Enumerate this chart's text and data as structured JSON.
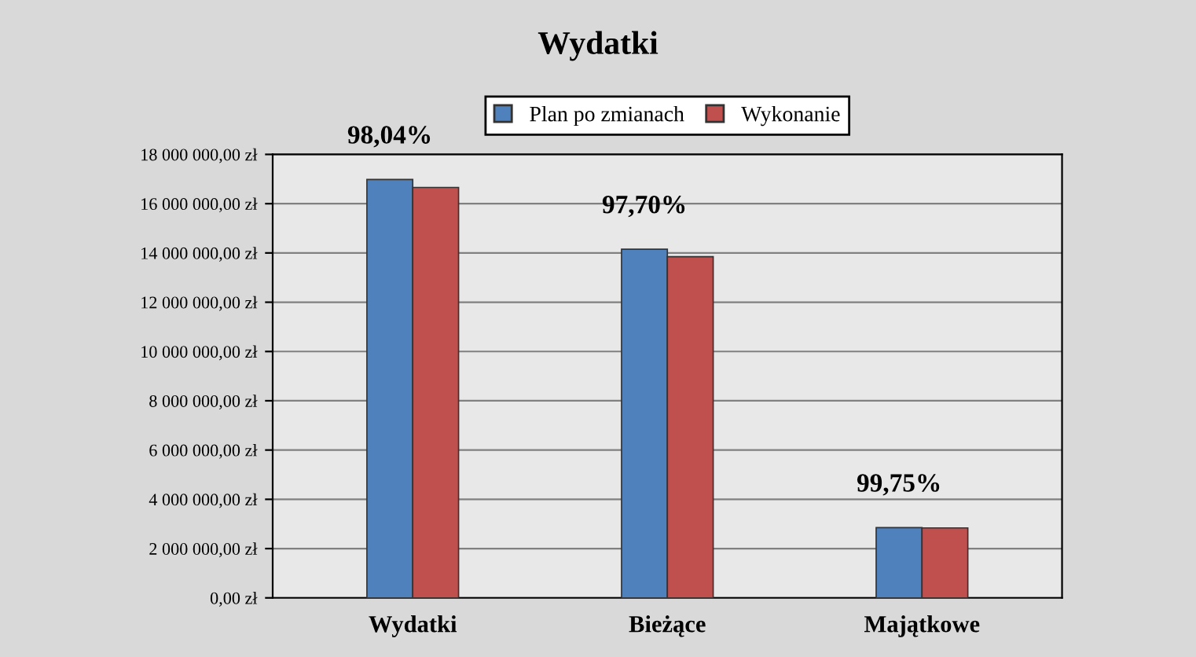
{
  "chart_data": {
    "type": "bar",
    "title": "Wydatki",
    "categories": [
      "Wydatki",
      "Bieżące",
      "Majątkowe"
    ],
    "series": [
      {
        "name": "Plan po zmianach",
        "color": "#4f81bd",
        "values": [
          16980000,
          14150000,
          2850000
        ]
      },
      {
        "name": "Wykonanie",
        "color": "#c0504d",
        "values": [
          16660000,
          13850000,
          2840000
        ]
      }
    ],
    "ylim": [
      0,
      18000000
    ],
    "yticks": [
      {
        "value": 0,
        "label": "0,00 zł"
      },
      {
        "value": 2000000,
        "label": "2 000 000,00 zł"
      },
      {
        "value": 4000000,
        "label": "4 000 000,00 zł"
      },
      {
        "value": 6000000,
        "label": "6 000 000,00 zł"
      },
      {
        "value": 8000000,
        "label": "8 000 000,00 zł"
      },
      {
        "value": 10000000,
        "label": "10 000 000,00 zł"
      },
      {
        "value": 12000000,
        "label": "12 000 000,00 zł"
      },
      {
        "value": 14000000,
        "label": "14 000 000,00 zł"
      },
      {
        "value": 16000000,
        "label": "16 000 000,00 zł"
      },
      {
        "value": 18000000,
        "label": "18 000 000,00 zł"
      }
    ],
    "annotations": [
      {
        "text": "98,04%",
        "x": "Wydatki",
        "y": 16980000
      },
      {
        "text": "97,70%",
        "x": "Bieżące",
        "y": 14150000
      },
      {
        "text": "99,75%",
        "x": "Majątkowe",
        "y": 2850000
      }
    ],
    "grid": "y",
    "legend": "top"
  }
}
